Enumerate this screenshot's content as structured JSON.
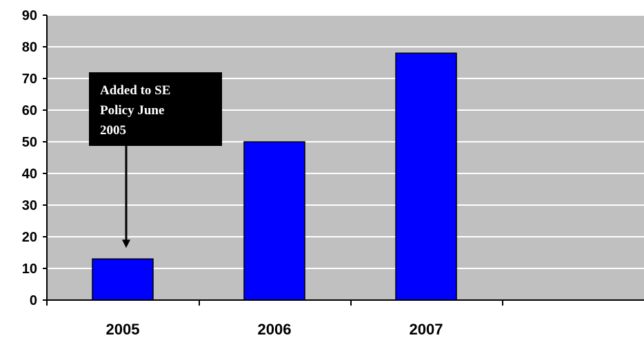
{
  "chart_data": {
    "type": "bar",
    "categories": [
      "2005",
      "2006",
      "2007"
    ],
    "values": [
      13,
      50,
      78
    ],
    "ylim": [
      0,
      90
    ],
    "yticks": [
      0,
      10,
      20,
      30,
      40,
      50,
      60,
      70,
      80,
      90
    ],
    "grid": true,
    "title": "",
    "xlabel": "",
    "ylabel": "",
    "colors": {
      "bar": "#0000ff",
      "bar_outline": "#000000",
      "plot_background": "#c0c0c0",
      "gridline": "#ffffff",
      "callout_background": "#000000",
      "callout_text": "#ffffff"
    },
    "annotation": {
      "text": "Added to SE Policy June 2005",
      "lines": [
        "Added to SE",
        "Policy June",
        "2005"
      ],
      "points_to_category": "2005"
    }
  }
}
